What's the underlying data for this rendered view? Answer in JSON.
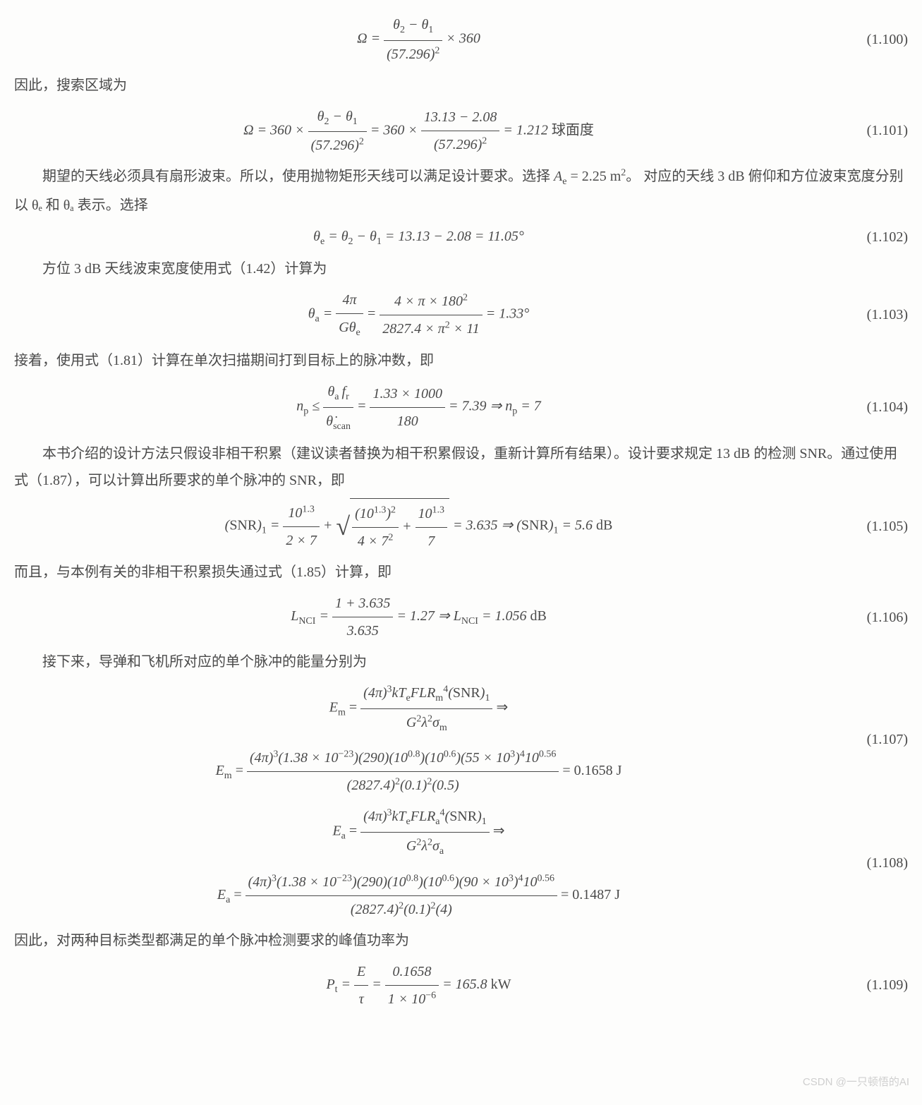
{
  "typography": {
    "body_font": "SimSun / Times New Roman",
    "body_fontsize_pt": 15,
    "math_font": "Times New Roman italic",
    "text_color": "#4a4a4a",
    "background_color": "#fdfdfc",
    "line_height": 1.9
  },
  "watermark": "CSDN @一只顿悟的AI",
  "equations": {
    "e100": {
      "num": "(1.100)",
      "tex": "Ω = (θ₂−θ₁)/(57.296)² × 360"
    },
    "e101": {
      "num": "(1.101)",
      "tex": "Ω = 360×(θ₂−θ₁)/(57.296)² = 360×(13.13−2.08)/(57.296)² = 1.212 球面度"
    },
    "e102": {
      "num": "(1.102)",
      "tex": "θ_e = θ₂−θ₁ = 13.13−2.08 = 11.05°"
    },
    "e103": {
      "num": "(1.103)",
      "tex": "θ_a = 4π/(Gθ_e) = 4×π×180²/(2827.4×π²×11) = 1.33°"
    },
    "e104": {
      "num": "(1.104)",
      "tex": "n_p ≤ θ_a f_r / θ̇_scan = 1.33×1000/180 = 7.39 ⇒ n_p = 7"
    },
    "e105": {
      "num": "(1.105)",
      "tex": "(SNR)₁ = 10^1.3/(2×7) + √((10^1.3)²/(4×7²) + 10^1.3/7) = 3.635 ⇒ (SNR)₁ = 5.6 dB"
    },
    "e106": {
      "num": "(1.106)",
      "tex": "L_NCI = (1+3.635)/3.635 = 1.27 ⇒ L_NCI = 1.056 dB"
    },
    "e107": {
      "num": "(1.107)",
      "tex_a": "E_m = (4π)³kT_eFLR_m⁴(SNR)₁/(G²λ²σ_m) ⇒",
      "tex_b": "E_m = (4π)³(1.38×10⁻²³)(290)(10^0.8)(10^0.6)(55×10³)⁴10^0.56/((2827.4)²(0.1)²(0.5)) = 0.1658 J"
    },
    "e108": {
      "num": "(1.108)",
      "tex_a": "E_a = (4π)³kT_eFLR_a⁴(SNR)₁/(G²λ²σ_a) ⇒",
      "tex_b": "E_a = (4π)³(1.38×10⁻²³)(290)(10^0.8)(10^0.6)(90×10³)⁴10^0.56/((2827.4)²(0.1)²(4)) = 0.1487 J"
    },
    "e109": {
      "num": "(1.109)",
      "tex": "P_t = E/τ = 0.1658/(1×10⁻⁶) = 165.8 kW"
    }
  },
  "paragraphs": {
    "p1": "因此，搜索区域为",
    "p2_a": "期望的天线必须具有扇形波束。所以，使用抛物矩形天线可以满足设计要求。选择 ",
    "p2_b": " 对应的天线 3 dB 俯仰和方位波束宽度分别以 θₑ 和 θₐ 表示。选择",
    "p2_Ae": "Aₑ = 2.25 m²。",
    "p3": "方位 3 dB 天线波束宽度使用式（1.42）计算为",
    "p4": "接着，使用式（1.81）计算在单次扫描期间打到目标上的脉冲数，即",
    "p5": "本书介绍的设计方法只假设非相干积累（建议读者替换为相干积累假设，重新计算所有结果）。设计要求规定 13 dB 的检测 SNR。通过使用式（1.87），可以计算出所要求的单个脉冲的 SNR，即",
    "p6": "而且，与本例有关的非相干积累损失通过式（1.85）计算，即",
    "p7": "接下来，导弹和飞机所对应的单个脉冲的能量分别为",
    "p8": "因此，对两种目标类型都满足的单个脉冲检测要求的峰值功率为"
  }
}
